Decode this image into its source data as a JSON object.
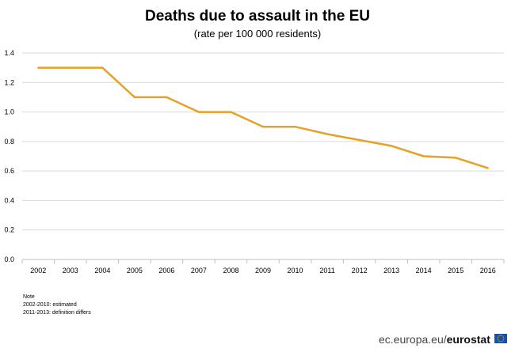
{
  "chart_data": {
    "type": "line",
    "title": "Deaths due to assault in the EU",
    "subtitle": "(rate per 100 000 residents)",
    "xlabel": "",
    "ylabel": "",
    "categories": [
      "2002",
      "2003",
      "2004",
      "2005",
      "2006",
      "2007",
      "2008",
      "2009",
      "2010",
      "2011",
      "2012",
      "2013",
      "2014",
      "2015",
      "2016"
    ],
    "series": [
      {
        "values": [
          1.3,
          1.3,
          1.3,
          1.1,
          1.1,
          1.0,
          1.0,
          0.9,
          0.9,
          0.85,
          0.81,
          0.77,
          0.7,
          0.69,
          0.62
        ]
      }
    ],
    "ylim": [
      0,
      1.4
    ],
    "yticks": [
      "0.0",
      "0.2",
      "0.4",
      "0.6",
      "0.8",
      "1.0",
      "1.2",
      "1.4"
    ],
    "grid": true,
    "line_color": "#E5A128"
  },
  "notes": {
    "heading": "Note",
    "lines": [
      "2002-2010:  estimated",
      "2011-2013:  definition differs"
    ]
  },
  "footer": {
    "site": "ec.europa.eu/",
    "brand": "eurostat"
  },
  "icons": {
    "flag": "eu-flag-icon"
  }
}
